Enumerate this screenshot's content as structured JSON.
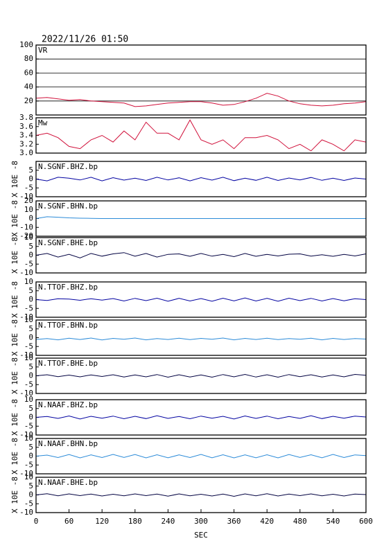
{
  "chart_data": [
    {
      "type": "line",
      "title": "2022/11/26 01:50",
      "label": "VR",
      "color": "#d0103a",
      "grid": true,
      "ylim": [
        0,
        100
      ],
      "yticks": [
        20,
        40,
        60,
        80,
        100
      ],
      "x": [
        0,
        20,
        40,
        60,
        80,
        100,
        120,
        140,
        160,
        180,
        200,
        220,
        240,
        260,
        280,
        300,
        320,
        340,
        360,
        380,
        400,
        420,
        440,
        460,
        480,
        500,
        520,
        540,
        560,
        580,
        600
      ],
      "values": [
        24,
        25,
        23,
        21,
        22,
        20,
        19,
        18,
        17,
        12,
        13,
        15,
        17,
        18,
        19,
        19,
        17,
        14,
        15,
        19,
        24,
        31,
        27,
        20,
        16,
        14,
        13,
        14,
        16,
        17,
        19
      ]
    },
    {
      "type": "line",
      "label": "Mw",
      "color": "#d0103a",
      "ylim": [
        3.0,
        3.8
      ],
      "yticks": [
        {
          "value": 3,
          "label": "3.0"
        },
        3.2,
        3.4,
        3.6,
        3.8
      ],
      "x": [
        0,
        20,
        40,
        60,
        80,
        100,
        120,
        140,
        160,
        180,
        200,
        220,
        240,
        260,
        280,
        300,
        320,
        340,
        360,
        380,
        400,
        420,
        440,
        460,
        480,
        500,
        520,
        540,
        560,
        580,
        600
      ],
      "values": [
        3.4,
        3.45,
        3.35,
        3.15,
        3.1,
        3.3,
        3.4,
        3.25,
        3.5,
        3.3,
        3.7,
        3.45,
        3.45,
        3.3,
        3.75,
        3.3,
        3.2,
        3.3,
        3.1,
        3.35,
        3.35,
        3.4,
        3.3,
        3.1,
        3.2,
        3.05,
        3.3,
        3.2,
        3.05,
        3.3,
        3.25
      ]
    },
    {
      "type": "line",
      "label": "N.SGNF.BHZ.bp",
      "ylabel": "X 10E -8",
      "color": "#0000a0",
      "ylim": [
        -10,
        10
      ],
      "yticks": [
        -10,
        -5,
        0,
        5
      ],
      "x": [
        0,
        20,
        40,
        60,
        80,
        100,
        120,
        140,
        160,
        180,
        200,
        220,
        240,
        260,
        280,
        300,
        320,
        340,
        360,
        380,
        400,
        420,
        440,
        460,
        480,
        500,
        520,
        540,
        560,
        580,
        600
      ],
      "values": [
        0,
        -1,
        1,
        0.5,
        -0.5,
        1,
        -1,
        0.8,
        -0.6,
        0.5,
        -0.8,
        1,
        -0.5,
        0.7,
        -1,
        0.8,
        -0.6,
        1,
        -0.9,
        0.5,
        -0.7,
        1,
        -0.8,
        0.6,
        -0.5,
        0.9,
        -0.7,
        0.5,
        -0.8,
        0.6,
        0
      ]
    },
    {
      "type": "line",
      "label": "N.SGNF.BHN.bp",
      "ylabel": "X 10E -8",
      "color": "#2a8ad8",
      "ylim": [
        -20,
        20
      ],
      "yticks": [
        -20,
        -10,
        0,
        10,
        20
      ],
      "x": [
        0,
        20,
        40,
        60,
        80,
        100,
        120,
        140,
        160,
        180,
        200,
        220,
        240,
        260,
        280,
        300,
        320,
        340,
        360,
        380,
        400,
        420,
        440,
        460,
        480,
        500,
        520,
        540,
        560,
        580,
        600
      ],
      "values": [
        0,
        2,
        1.5,
        0.8,
        0.4,
        0.2,
        0,
        0,
        0,
        0,
        0,
        0,
        0,
        0,
        0,
        0,
        0,
        0,
        0,
        0,
        0,
        0,
        0,
        0,
        0,
        0,
        0,
        0,
        0,
        0,
        0
      ]
    },
    {
      "type": "line",
      "label": "N.SGNF.BHE.bp",
      "ylabel": "X 10E -8",
      "color": "#000040",
      "ylim": [
        -10,
        10
      ],
      "yticks": [
        -10,
        -5,
        0,
        5,
        10
      ],
      "x": [
        0,
        20,
        40,
        60,
        80,
        100,
        120,
        140,
        160,
        180,
        200,
        220,
        240,
        260,
        280,
        300,
        320,
        340,
        360,
        380,
        400,
        420,
        440,
        460,
        480,
        500,
        520,
        540,
        560,
        580,
        600
      ],
      "values": [
        0,
        1,
        -1,
        0.5,
        -1.5,
        1,
        -0.5,
        0.8,
        1.5,
        -0.5,
        1,
        -1,
        0.5,
        0.8,
        -0.6,
        1,
        -0.5,
        0.5,
        -0.8,
        1,
        -0.6,
        0.5,
        -0.4,
        0.6,
        0.8,
        -0.5,
        0.3,
        -0.6,
        0.5,
        -0.4,
        0.8
      ]
    },
    {
      "type": "line",
      "label": "N.TTOF.BHZ.bp",
      "ylabel": "X 10E -8",
      "color": "#0000a0",
      "ylim": [
        -10,
        10
      ],
      "yticks": [
        -10,
        -5,
        0,
        5,
        10
      ],
      "x": [
        0,
        20,
        40,
        60,
        80,
        100,
        120,
        140,
        160,
        180,
        200,
        220,
        240,
        260,
        280,
        300,
        320,
        340,
        360,
        380,
        400,
        420,
        440,
        460,
        480,
        500,
        520,
        540,
        560,
        580,
        600
      ],
      "values": [
        0,
        -0.5,
        0.5,
        0.3,
        -0.4,
        0.5,
        -0.3,
        0.6,
        -0.8,
        0.7,
        -0.6,
        0.8,
        -0.9,
        0.7,
        -0.8,
        0.6,
        -0.9,
        0.8,
        -0.7,
        0.9,
        -0.8,
        0.7,
        -0.9,
        0.8,
        -0.6,
        0.7,
        -0.8,
        0.6,
        -0.7,
        0.5,
        0
      ]
    },
    {
      "type": "line",
      "label": "N.TTOF.BHN.bp",
      "ylabel": "X 10E -8",
      "color": "#2a8ad8",
      "ylim": [
        -10,
        10
      ],
      "yticks": [
        -10,
        -5,
        0,
        5,
        10
      ],
      "x": [
        0,
        20,
        40,
        60,
        80,
        100,
        120,
        140,
        160,
        180,
        200,
        220,
        240,
        260,
        280,
        300,
        320,
        340,
        360,
        380,
        400,
        420,
        440,
        460,
        480,
        500,
        520,
        540,
        560,
        580,
        600
      ],
      "values": [
        -1,
        -0.5,
        -1.2,
        -0.3,
        -1,
        -0.2,
        -1.3,
        -0.4,
        -0.9,
        -0.2,
        -1.2,
        -0.5,
        -1,
        -0.3,
        -1.1,
        -0.4,
        -0.9,
        -0.2,
        -1.2,
        -0.4,
        -1,
        -0.3,
        -1.1,
        -0.5,
        -0.9,
        -0.3,
        -1.2,
        -0.4,
        -1,
        -0.5,
        -0.8
      ]
    },
    {
      "type": "line",
      "label": "N.TTOF.BHE.bp",
      "ylabel": "X 10E -8",
      "color": "#000040",
      "ylim": [
        -10,
        10
      ],
      "yticks": [
        -10,
        -5,
        0,
        5,
        10
      ],
      "x": [
        0,
        20,
        40,
        60,
        80,
        100,
        120,
        140,
        160,
        180,
        200,
        220,
        240,
        260,
        280,
        300,
        320,
        340,
        360,
        380,
        400,
        420,
        440,
        460,
        480,
        500,
        520,
        540,
        560,
        580,
        600
      ],
      "values": [
        0,
        0.6,
        -0.5,
        0.4,
        -0.6,
        0.5,
        -0.4,
        0.6,
        -0.7,
        0.5,
        -0.6,
        0.7,
        -0.8,
        0.6,
        -0.7,
        0.5,
        -0.8,
        0.7,
        -0.6,
        0.8,
        -0.7,
        0.6,
        -0.8,
        0.7,
        -0.5,
        0.6,
        -0.7,
        0.5,
        -0.6,
        0.8,
        0.3
      ]
    },
    {
      "type": "line",
      "label": "N.NAAF.BHZ.bp",
      "ylabel": "X 10E -8",
      "color": "#0000a0",
      "ylim": [
        -10,
        10
      ],
      "yticks": [
        -10,
        -5,
        0,
        5,
        10
      ],
      "x": [
        0,
        20,
        40,
        60,
        80,
        100,
        120,
        140,
        160,
        180,
        200,
        220,
        240,
        260,
        280,
        300,
        320,
        340,
        360,
        380,
        400,
        420,
        440,
        460,
        480,
        500,
        520,
        540,
        560,
        580,
        600
      ],
      "values": [
        0,
        0.5,
        -0.6,
        0.8,
        -0.9,
        0.6,
        -0.5,
        0.7,
        -0.8,
        0.6,
        -0.7,
        0.9,
        -0.6,
        0.5,
        -0.8,
        0.7,
        -0.5,
        0.6,
        -0.9,
        0.8,
        -0.6,
        0.7,
        -0.8,
        0.5,
        -0.6,
        0.9,
        -0.7,
        0.6,
        -0.5,
        0.7,
        0.2
      ]
    },
    {
      "type": "line",
      "label": "N.NAAF.BHN.bp",
      "ylabel": "X 10E -8",
      "color": "#2a8ad8",
      "ylim": [
        -10,
        10
      ],
      "yticks": [
        -10,
        -5,
        0,
        5,
        10
      ],
      "x": [
        0,
        20,
        40,
        60,
        80,
        100,
        120,
        140,
        160,
        180,
        200,
        220,
        240,
        260,
        280,
        300,
        320,
        340,
        360,
        380,
        400,
        420,
        440,
        460,
        480,
        500,
        520,
        540,
        560,
        580,
        600
      ],
      "values": [
        0,
        0.6,
        -0.8,
        0.9,
        -1,
        0.7,
        -0.8,
        1,
        -0.7,
        0.9,
        -1,
        0.8,
        -0.9,
        0.7,
        -0.8,
        1,
        -0.9,
        0.8,
        -1,
        0.7,
        -0.9,
        0.8,
        -1,
        0.9,
        -0.7,
        0.8,
        -0.9,
        1,
        -0.8,
        0.7,
        0.3
      ]
    },
    {
      "type": "line",
      "label": "N.NAAF.BHE.bp",
      "ylabel": "X 10E -8",
      "color": "#000040",
      "ylim": [
        -10,
        10
      ],
      "yticks": [
        -10,
        -5,
        0,
        5,
        10
      ],
      "xlabel": "SEC",
      "xticks": [
        0,
        60,
        120,
        180,
        240,
        300,
        360,
        420,
        480,
        540,
        600
      ],
      "x": [
        0,
        20,
        40,
        60,
        80,
        100,
        120,
        140,
        160,
        180,
        200,
        220,
        240,
        260,
        280,
        300,
        320,
        340,
        360,
        380,
        400,
        420,
        440,
        460,
        480,
        500,
        520,
        540,
        560,
        580,
        600
      ],
      "values": [
        0,
        0.7,
        -0.5,
        0.6,
        -0.4,
        0.5,
        -0.6,
        0.4,
        -0.5,
        0.6,
        -0.4,
        0.5,
        -0.7,
        0.6,
        -0.5,
        0.4,
        -0.6,
        0.5,
        -0.8,
        0.6,
        -0.5,
        0.7,
        -0.6,
        0.5,
        -0.4,
        0.6,
        -0.5,
        0.4,
        -0.6,
        0.5,
        0.2
      ]
    }
  ]
}
